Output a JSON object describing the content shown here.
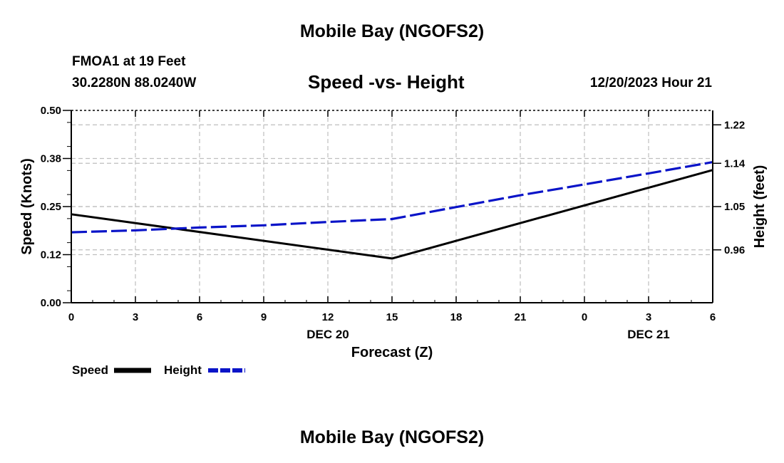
{
  "header": {
    "title_top": "Mobile Bay (NGOFS2)",
    "title_bottom": "Mobile Bay (NGOFS2)",
    "station": "FMOA1 at 19 Feet",
    "coords": "30.2280N  88.0240W",
    "datetime": "12/20/2023 Hour 21"
  },
  "legend": {
    "speed_label": "Speed",
    "height_label": "Height"
  },
  "colors": {
    "speed": "#000000",
    "height": "#0a14c8",
    "grid": "#bfbfbf"
  },
  "chart_data": {
    "type": "line",
    "title": "Speed -vs- Height",
    "xlabel": "Forecast (Z)",
    "ylabel": "Speed (Knots)",
    "y2label": "Height (feet)",
    "x_ticks": [
      "0",
      "3",
      "6",
      "9",
      "12",
      "15",
      "18",
      "21",
      "0",
      "3",
      "6"
    ],
    "x_date_labels": [
      {
        "label": "DEC 20",
        "tick_index": 4
      },
      {
        "label": "DEC 21",
        "tick_index": 9
      }
    ],
    "xlim": [
      0,
      30
    ],
    "ylim": [
      0,
      0.5
    ],
    "y_ticks": [
      "0.00",
      "0.12",
      "0.25",
      "0.38",
      "0.50"
    ],
    "y_tick_values": [
      0,
      0.125,
      0.25,
      0.375,
      0.5
    ],
    "y2lim": [
      0.85,
      1.25
    ],
    "y2_ticks": [
      "0.96",
      "1.05",
      "1.14",
      "1.22"
    ],
    "y2_tick_values": [
      0.96,
      1.05,
      1.14,
      1.22
    ],
    "grid": true,
    "series": [
      {
        "name": "Speed",
        "axis": "left",
        "style": "solid",
        "x": [
          0,
          15,
          30
        ],
        "values": [
          0.23,
          0.115,
          0.345
        ]
      },
      {
        "name": "Height",
        "axis": "right",
        "style": "dashed",
        "x": [
          0,
          3,
          6,
          9,
          12,
          15,
          18,
          21,
          24,
          27,
          30
        ],
        "values": [
          0.9965,
          1.0005,
          1.0065,
          1.011,
          1.018,
          1.024,
          1.049,
          1.0735,
          1.096,
          1.119,
          1.1425
        ]
      }
    ]
  }
}
